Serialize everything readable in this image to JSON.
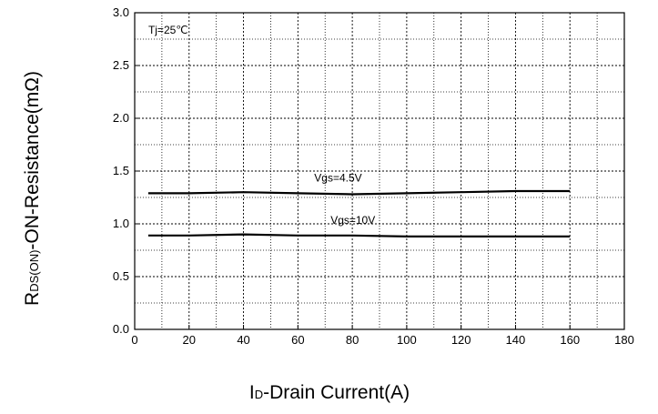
{
  "chart_data": {
    "type": "line",
    "xlabel": {
      "main": "I",
      "sub": "D",
      "rest": "-Drain Current(A)"
    },
    "ylabel": {
      "main": "R",
      "sub": "DS(ON)",
      "rest": "-ON-Resistance(mΩ)"
    },
    "xlim": [
      0,
      180
    ],
    "ylim": [
      0.0,
      3.0
    ],
    "x_ticks": [
      "0",
      "20",
      "40",
      "60",
      "80",
      "100",
      "120",
      "140",
      "160",
      "180"
    ],
    "y_ticks": [
      "0.0",
      "0.5",
      "1.0",
      "1.5",
      "2.0",
      "2.5",
      "3.0"
    ],
    "x_tick_values": [
      0,
      20,
      40,
      60,
      80,
      100,
      120,
      140,
      160,
      180
    ],
    "y_tick_values": [
      0.0,
      0.5,
      1.0,
      1.5,
      2.0,
      2.5,
      3.0
    ],
    "minor_x": [
      10,
      30,
      50,
      70,
      90,
      110,
      130,
      150,
      170
    ],
    "minor_y": [
      0.25,
      0.75,
      1.25,
      1.75,
      2.25,
      2.75
    ],
    "grid": true,
    "annotations": [
      {
        "text": "Tj=25℃",
        "x": 5,
        "y": 2.8
      },
      {
        "text": "Vgs=4.5V",
        "x": 66,
        "y": 1.4
      },
      {
        "text": "Vgs=10V",
        "x": 72,
        "y": 1.0
      }
    ],
    "series": [
      {
        "name": "Vgs=4.5V",
        "x": [
          5,
          20,
          40,
          60,
          80,
          100,
          120,
          140,
          160
        ],
        "y": [
          1.29,
          1.29,
          1.3,
          1.29,
          1.28,
          1.29,
          1.3,
          1.31,
          1.31
        ]
      },
      {
        "name": "Vgs=10V",
        "x": [
          5,
          20,
          40,
          60,
          80,
          100,
          120,
          140,
          160
        ],
        "y": [
          0.89,
          0.89,
          0.9,
          0.89,
          0.89,
          0.88,
          0.88,
          0.88,
          0.88
        ]
      }
    ]
  }
}
